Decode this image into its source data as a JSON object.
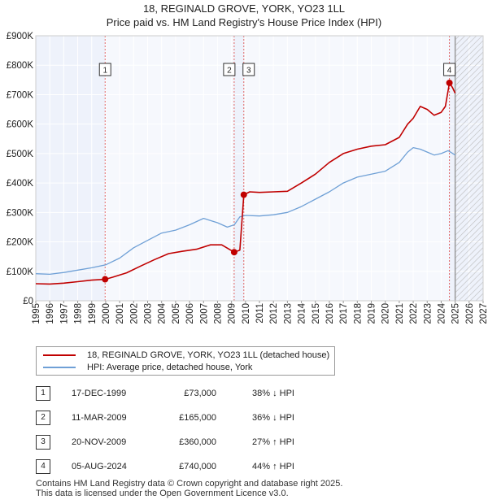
{
  "chart_data": {
    "type": "line",
    "title": "18, REGINALD GROVE, YORK, YO23 1LL",
    "subtitle": "Price paid vs. HM Land Registry's House Price Index (HPI)",
    "xlabel": "",
    "ylabel": "",
    "xlim": [
      1995,
      2027
    ],
    "ylim": [
      0,
      900000
    ],
    "grid": true,
    "x_ticks": [
      "1995",
      "1996",
      "1997",
      "1998",
      "1999",
      "2000",
      "2001",
      "2002",
      "2003",
      "2004",
      "2005",
      "2006",
      "2007",
      "2008",
      "2009",
      "2010",
      "2011",
      "2012",
      "2013",
      "2014",
      "2015",
      "2016",
      "2017",
      "2018",
      "2019",
      "2020",
      "2021",
      "2022",
      "2023",
      "2024",
      "2025",
      "2026",
      "2027"
    ],
    "y_ticks": [
      "£0",
      "£100K",
      "£200K",
      "£300K",
      "£400K",
      "£500K",
      "£600K",
      "£700K",
      "£800K",
      "£900K"
    ],
    "y_tick_values": [
      0,
      100000,
      200000,
      300000,
      400000,
      500000,
      600000,
      700000,
      800000,
      900000
    ],
    "forecast_from": 2025.0,
    "series": [
      {
        "name": "18, REGINALD GROVE, YORK, YO23 1LL (detached house)",
        "color": "#c00000",
        "x": [
          1995.0,
          1996.0,
          1997.0,
          1998.0,
          1999.0,
          1999.96,
          2000.5,
          2001.5,
          2002.5,
          2003.5,
          2004.5,
          2005.5,
          2006.5,
          2007.5,
          2008.3,
          2009.19,
          2009.6,
          2009.88,
          2010.3,
          2011.0,
          2012.0,
          2013.0,
          2014.0,
          2015.0,
          2016.0,
          2017.0,
          2018.0,
          2019.0,
          2020.0,
          2021.0,
          2021.6,
          2022.0,
          2022.5,
          2023.0,
          2023.5,
          2024.0,
          2024.3,
          2024.59,
          2024.8,
          2025.0
        ],
        "values": [
          58000,
          57000,
          60000,
          65000,
          70000,
          73000,
          80000,
          95000,
          118000,
          140000,
          160000,
          168000,
          175000,
          190000,
          190000,
          165000,
          172000,
          360000,
          370000,
          368000,
          370000,
          372000,
          400000,
          430000,
          470000,
          500000,
          515000,
          525000,
          530000,
          555000,
          600000,
          620000,
          660000,
          650000,
          630000,
          640000,
          660000,
          740000,
          725000,
          705000
        ]
      },
      {
        "name": "HPI: Average price, detached house, York",
        "color": "#6fa0d6",
        "x": [
          1995.0,
          1996.0,
          1997.0,
          1998.0,
          1999.0,
          2000.0,
          2001.0,
          2002.0,
          2003.0,
          2004.0,
          2005.0,
          2006.0,
          2007.0,
          2008.0,
          2008.7,
          2009.2,
          2009.6,
          2010.0,
          2011.0,
          2012.0,
          2013.0,
          2014.0,
          2015.0,
          2016.0,
          2017.0,
          2018.0,
          2019.0,
          2020.0,
          2021.0,
          2021.6,
          2022.0,
          2022.5,
          2023.0,
          2023.5,
          2024.0,
          2024.5,
          2025.0
        ],
        "values": [
          92000,
          90000,
          96000,
          104000,
          112000,
          122000,
          145000,
          180000,
          205000,
          230000,
          240000,
          258000,
          280000,
          265000,
          250000,
          258000,
          285000,
          290000,
          288000,
          292000,
          300000,
          320000,
          345000,
          370000,
          400000,
          420000,
          430000,
          440000,
          470000,
          505000,
          520000,
          515000,
          505000,
          495000,
          500000,
          510000,
          495000
        ]
      }
    ],
    "sale_markers": [
      {
        "label": "1",
        "x": 1999.96,
        "value": 73000
      },
      {
        "label": "2",
        "x": 2009.19,
        "value": 165000
      },
      {
        "label": "3",
        "x": 2009.88,
        "value": 360000
      },
      {
        "label": "4",
        "x": 2024.59,
        "value": 740000
      }
    ]
  },
  "legend": {
    "property_label": "18, REGINALD GROVE, YORK, YO23 1LL (detached house)",
    "hpi_label": "HPI: Average price, detached house, York",
    "property_color": "#c00000",
    "hpi_color": "#6fa0d6"
  },
  "sales": [
    {
      "num": "1",
      "date": "17-DEC-1999",
      "price": "£73,000",
      "hpi": "38% ↓ HPI"
    },
    {
      "num": "2",
      "date": "11-MAR-2009",
      "price": "£165,000",
      "hpi": "36% ↓ HPI"
    },
    {
      "num": "3",
      "date": "20-NOV-2009",
      "price": "£360,000",
      "hpi": "27% ↑ HPI"
    },
    {
      "num": "4",
      "date": "05-AUG-2024",
      "price": "£740,000",
      "hpi": "44% ↑ HPI"
    }
  ],
  "footer": {
    "line1": "Contains HM Land Registry data © Crown copyright and database right 2025.",
    "line2": "This data is licensed under the Open Government Licence v3.0."
  }
}
